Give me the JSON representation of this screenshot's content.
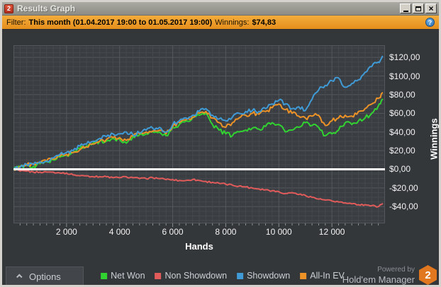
{
  "window": {
    "title": "Results Graph",
    "icon_text": "2"
  },
  "filter_bar": {
    "label": "Filter:",
    "value": "This month (01.04.2017 19:00 to 01.05.2017 19:00)",
    "winnings_label": "Winnings:",
    "winnings_value": "$74,83",
    "help_glyph": "?"
  },
  "options_button": {
    "label": "Options"
  },
  "powered_by": {
    "line1": "Powered by",
    "line2": "Hold'em Manager",
    "badge": "2"
  },
  "colors": {
    "plot_bg": "#3a3e42",
    "grid_minor": "#45494d",
    "grid_major": "#54585c",
    "zero_line": "#ffffff",
    "tick": "#8a8e92"
  },
  "chart_data": {
    "type": "line",
    "title": "",
    "xlabel": "Hands",
    "ylabel": "Winnings",
    "xlim": [
      0,
      14000
    ],
    "ylim": [
      -58,
      133
    ],
    "grid": {
      "on": true,
      "minor_x_step": 250,
      "minor_y_step": 5,
      "major_x_step": 2000,
      "major_y_step": 20
    },
    "zero_line_value": 0,
    "legend_position": "bottom",
    "x_ticks": [
      {
        "value": 2000,
        "label": "2 000"
      },
      {
        "value": 4000,
        "label": "4 000"
      },
      {
        "value": 6000,
        "label": "6 000"
      },
      {
        "value": 8000,
        "label": "8 000"
      },
      {
        "value": 10000,
        "label": "10 000"
      },
      {
        "value": 12000,
        "label": "12 000"
      }
    ],
    "y_ticks": [
      {
        "value": 120,
        "label": "$120,00"
      },
      {
        "value": 100,
        "label": "$100,00"
      },
      {
        "value": 80,
        "label": "$80,00"
      },
      {
        "value": 60,
        "label": "$60,00"
      },
      {
        "value": 40,
        "label": "$40,00"
      },
      {
        "value": 20,
        "label": "$20,00"
      },
      {
        "value": 0,
        "label": "$0,00"
      },
      {
        "value": -20,
        "label": "-$20,00"
      },
      {
        "value": -40,
        "label": "-$40,00"
      }
    ],
    "x": [
      0,
      250,
      500,
      750,
      1000,
      1250,
      1500,
      1750,
      2000,
      2250,
      2500,
      2750,
      3000,
      3250,
      3500,
      3750,
      4000,
      4250,
      4500,
      4750,
      5000,
      5250,
      5500,
      5750,
      6000,
      6250,
      6500,
      6750,
      7000,
      7250,
      7500,
      7750,
      8000,
      8250,
      8500,
      8750,
      9000,
      9250,
      9500,
      9750,
      10000,
      10250,
      10500,
      10750,
      11000,
      11250,
      11500,
      11750,
      12000,
      12250,
      12500,
      12750,
      13000,
      13250,
      13500,
      13750,
      13900
    ],
    "series": [
      {
        "name": "Net Won",
        "color": "#31d331",
        "z": 2,
        "jitter": 2.2,
        "values": [
          0,
          3,
          4,
          3,
          6,
          8,
          10,
          13,
          15,
          18,
          22,
          25,
          28,
          30,
          30,
          33,
          32,
          28,
          35,
          37,
          38,
          40,
          40,
          36,
          45,
          48,
          52,
          55,
          58,
          60,
          48,
          42,
          38,
          36,
          40,
          42,
          44,
          43,
          46,
          50,
          48,
          40,
          42,
          45,
          50,
          47,
          45,
          36,
          38,
          42,
          50,
          48,
          52,
          55,
          60,
          68,
          75
        ]
      },
      {
        "name": "Non Showdown",
        "color": "#e25b5b",
        "z": 1,
        "jitter": 0.9,
        "values": [
          0,
          -2,
          -2,
          -3,
          -3,
          -3,
          -3,
          -4,
          -4,
          -6,
          -7,
          -7,
          -8,
          -8,
          -8,
          -9,
          -9,
          -8,
          -9,
          -10,
          -10,
          -9,
          -10,
          -11,
          -11,
          -12,
          -12,
          -11,
          -12,
          -13,
          -14,
          -15,
          -16,
          -17,
          -18,
          -19,
          -20,
          -21,
          -22,
          -23,
          -24,
          -26,
          -25,
          -27,
          -28,
          -30,
          -32,
          -33,
          -34,
          -35,
          -36,
          -37,
          -38,
          -38,
          -39,
          -40,
          -37
        ]
      },
      {
        "name": "Showdown",
        "color": "#3f9ad6",
        "z": 4,
        "jitter": 2.2,
        "values": [
          0,
          2,
          5,
          5,
          8,
          9,
          12,
          16,
          18,
          20,
          25,
          27,
          30,
          33,
          35,
          38,
          38,
          40,
          37,
          39,
          42,
          44,
          45,
          40,
          48,
          52,
          55,
          58,
          62,
          65,
          58,
          54,
          52,
          56,
          60,
          62,
          63,
          62,
          65,
          70,
          74,
          70,
          65,
          67,
          63,
          75,
          85,
          90,
          95,
          98,
          88,
          92,
          96,
          104,
          110,
          115,
          121
        ]
      },
      {
        "name": "All-In EV",
        "color": "#ec9227",
        "z": 3,
        "jitter": 2.2,
        "values": [
          0,
          3,
          5,
          6,
          7,
          9,
          11,
          14,
          16,
          18,
          21,
          24,
          27,
          30,
          32,
          34,
          34,
          31,
          36,
          38,
          40,
          41,
          42,
          38,
          46,
          50,
          53,
          56,
          60,
          62,
          55,
          50,
          45,
          50,
          55,
          58,
          60,
          59,
          62,
          66,
          70,
          64,
          60,
          57,
          55,
          57,
          58,
          47,
          52,
          55,
          58,
          57,
          62,
          65,
          70,
          76,
          82
        ]
      }
    ]
  }
}
